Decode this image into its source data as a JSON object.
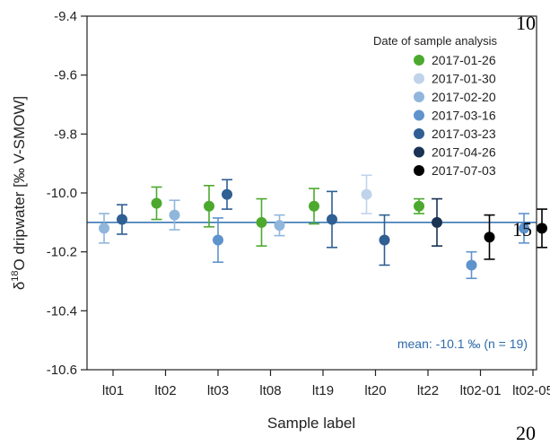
{
  "chart_data": {
    "type": "scatter",
    "xlabel": "Sample label",
    "ylabel_prefix": "δ",
    "ylabel_sup": "18",
    "ylabel_rest": "O dripwater [‰ V-SMOW]",
    "ylim": [
      -10.6,
      -9.4
    ],
    "yticks": [
      -10.6,
      -10.4,
      -10.2,
      -10.0,
      -9.8,
      -9.6,
      -9.4
    ],
    "ytick_labels": [
      "-10.6",
      "-10.4",
      "-10.2",
      "-10.0",
      "-9.8",
      "-9.6",
      "-9.4"
    ],
    "categories": [
      "lt01",
      "lt02",
      "lt03",
      "lt08",
      "lt19",
      "lt20",
      "lt22",
      "lt02-01",
      "lt02-05"
    ],
    "legend_title": "Date of sample analysis",
    "legend_position": "top-right",
    "grid": false,
    "series": [
      {
        "name": "2017-01-26",
        "color": "#4ca92e",
        "points": [
          {
            "category": "lt02",
            "offset": -1,
            "y": -10.035,
            "err": 0.055
          },
          {
            "category": "lt03",
            "offset": -1,
            "y": -10.045,
            "err": 0.07
          },
          {
            "category": "lt08",
            "offset": -1,
            "y": -10.1,
            "err": 0.08
          },
          {
            "category": "lt19",
            "offset": -1,
            "y": -10.045,
            "err": 0.06
          },
          {
            "category": "lt22",
            "offset": -1,
            "y": -10.045,
            "err": 0.025
          }
        ]
      },
      {
        "name": "2017-01-30",
        "color": "#bfd3ea",
        "points": [
          {
            "category": "lt20",
            "offset": -1,
            "y": -10.005,
            "err": 0.065
          }
        ]
      },
      {
        "name": "2017-02-20",
        "color": "#90b6dc",
        "points": [
          {
            "category": "lt01",
            "offset": -1,
            "y": -10.12,
            "err": 0.05
          },
          {
            "category": "lt02",
            "offset": 1,
            "y": -10.075,
            "err": 0.05
          },
          {
            "category": "lt08",
            "offset": 1,
            "y": -10.11,
            "err": 0.035
          }
        ]
      },
      {
        "name": "2017-03-16",
        "color": "#5f93cc",
        "points": [
          {
            "category": "lt03",
            "offset": 0,
            "y": -10.16,
            "err": 0.075
          },
          {
            "category": "lt02-01",
            "offset": -1,
            "y": -10.245,
            "err": 0.045
          },
          {
            "category": "lt02-05",
            "offset": -1,
            "y": -10.12,
            "err": 0.05
          }
        ]
      },
      {
        "name": "2017-03-23",
        "color": "#2f5f93",
        "points": [
          {
            "category": "lt01",
            "offset": 1,
            "y": -10.09,
            "err": 0.05
          },
          {
            "category": "lt03",
            "offset": 1,
            "y": -10.005,
            "err": 0.05
          },
          {
            "category": "lt19",
            "offset": 1,
            "y": -10.09,
            "err": 0.095
          },
          {
            "category": "lt20",
            "offset": 1,
            "y": -10.16,
            "err": 0.085
          }
        ]
      },
      {
        "name": "2017-04-26",
        "color": "#1a3253",
        "points": [
          {
            "category": "lt22",
            "offset": 1,
            "y": -10.1,
            "err": 0.08
          }
        ]
      },
      {
        "name": "2017-07-03",
        "color": "#000000",
        "points": [
          {
            "category": "lt02-01",
            "offset": 1,
            "y": -10.15,
            "err": 0.075
          },
          {
            "category": "lt02-05",
            "offset": 1,
            "y": -10.12,
            "err": 0.065
          }
        ]
      }
    ],
    "mean": {
      "value": -10.1,
      "label": "mean: -10.1 ‰ (n = 19)",
      "color": "#3a78b5"
    }
  },
  "stray_marks": [
    "10",
    "15",
    "20"
  ]
}
